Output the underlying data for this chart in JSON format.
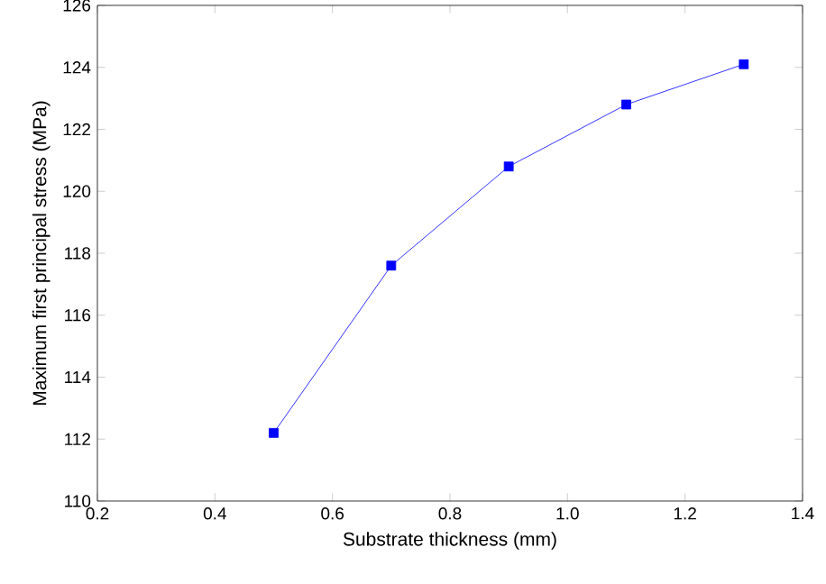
{
  "chart_data": {
    "type": "line",
    "xlabel": "Substrate thickness (mm)",
    "ylabel": "Maximum first principal stress (MPa)",
    "x": [
      0.5,
      0.7,
      0.9,
      1.1,
      1.3
    ],
    "series": [
      {
        "color": "#0000ff",
        "values": [
          112.2,
          117.6,
          120.8,
          122.8,
          124.1
        ]
      }
    ],
    "xlim": [
      0.2,
      1.4
    ],
    "xticks": [
      0.2,
      0.4,
      0.6,
      0.8,
      {
        "value": 1.0,
        "label": "1.0"
      },
      1.2,
      1.4
    ],
    "ylim": [
      110,
      126
    ],
    "yticks": [
      110,
      112,
      114,
      116,
      118,
      120,
      122,
      124,
      126
    ],
    "marker": "square",
    "line_style": "solid"
  }
}
